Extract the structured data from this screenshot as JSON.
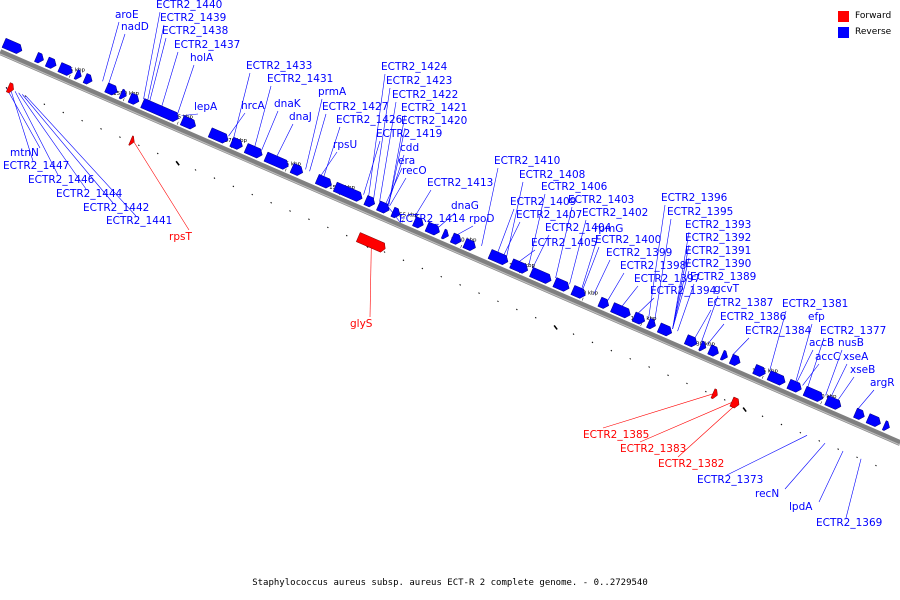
{
  "caption": "Staphylococcus aureus subsp. aureus ECT-R 2 complete genome. - 0..2729540",
  "legend": [
    {
      "label": "Forward",
      "color": "#ff0000"
    },
    {
      "label": "Reverse",
      "color": "#0000ff"
    }
  ],
  "colors": {
    "reverse": "#0000ff",
    "forward": "#ff0000",
    "backbone": "#808080"
  },
  "ticks": [
    "1585 kbp",
    "1580 kbp",
    "1575 kbp",
    "1570 kbp",
    "1565 kbp",
    "1560 kbp",
    "1555 kbp",
    "1550 kbp",
    "1545 kbp",
    "1540 kbp",
    "1535 kbp",
    "1530 kbp",
    "1525 kbp",
    "1520 kbp"
  ],
  "reverse_labels": [
    "aroE",
    "nadD",
    "ECTR2_1440",
    "ECTR2_1439",
    "ECTR2_1438",
    "ECTR2_1437",
    "holA",
    "lepA",
    "hrcA",
    "dnaK",
    "dnaJ",
    "ECTR2_1433",
    "ECTR2_1431",
    "prmA",
    "ECTR2_1427",
    "ECTR2_1426",
    "rpsU",
    "ECTR2_1424",
    "ECTR2_1423",
    "ECTR2_1422",
    "ECTR2_1421",
    "ECTR2_1420",
    "ECTR2_1419",
    "cdd",
    "era",
    "recO",
    "ECTR2_1413",
    "ECTR2_1414",
    "dnaG",
    "rpoD",
    "ECTR2_1410",
    "ECTR2_1408",
    "ECTR2_1406",
    "ECTR2_1409",
    "ECTR2_1407",
    "ECTR2_1403",
    "ECTR2_1402",
    "ECTR2_1404",
    "ECTR2_1405",
    "rpmG",
    "ECTR2_1400",
    "ECTR2_1399",
    "ECTR2_1398",
    "ECTR2_1397",
    "ECTR2_1396",
    "ECTR2_1395",
    "ECTR2_1393",
    "ECTR2_1392",
    "ECTR2_1391",
    "ECTR2_1390",
    "ECTR2_1389",
    "ECTR2_1394",
    "gcvT",
    "ECTR2_1387",
    "ECTR2_1386",
    "ECTR2_1384",
    "ECTR2_1381",
    "efp",
    "ECTR2_1377",
    "accB",
    "nusB",
    "accC",
    "xseA",
    "xseB",
    "argR",
    "mtnN",
    "ECTR2_1447",
    "ECTR2_1446",
    "ECTR2_1444",
    "ECTR2_1442",
    "ECTR2_1441",
    "ECTR2_1373",
    "recN",
    "lpdA",
    "ECTR2_1369"
  ],
  "forward_labels": [
    "rpsT",
    "glyS",
    "ECTR2_1385",
    "ECTR2_1383",
    "ECTR2_1382"
  ]
}
